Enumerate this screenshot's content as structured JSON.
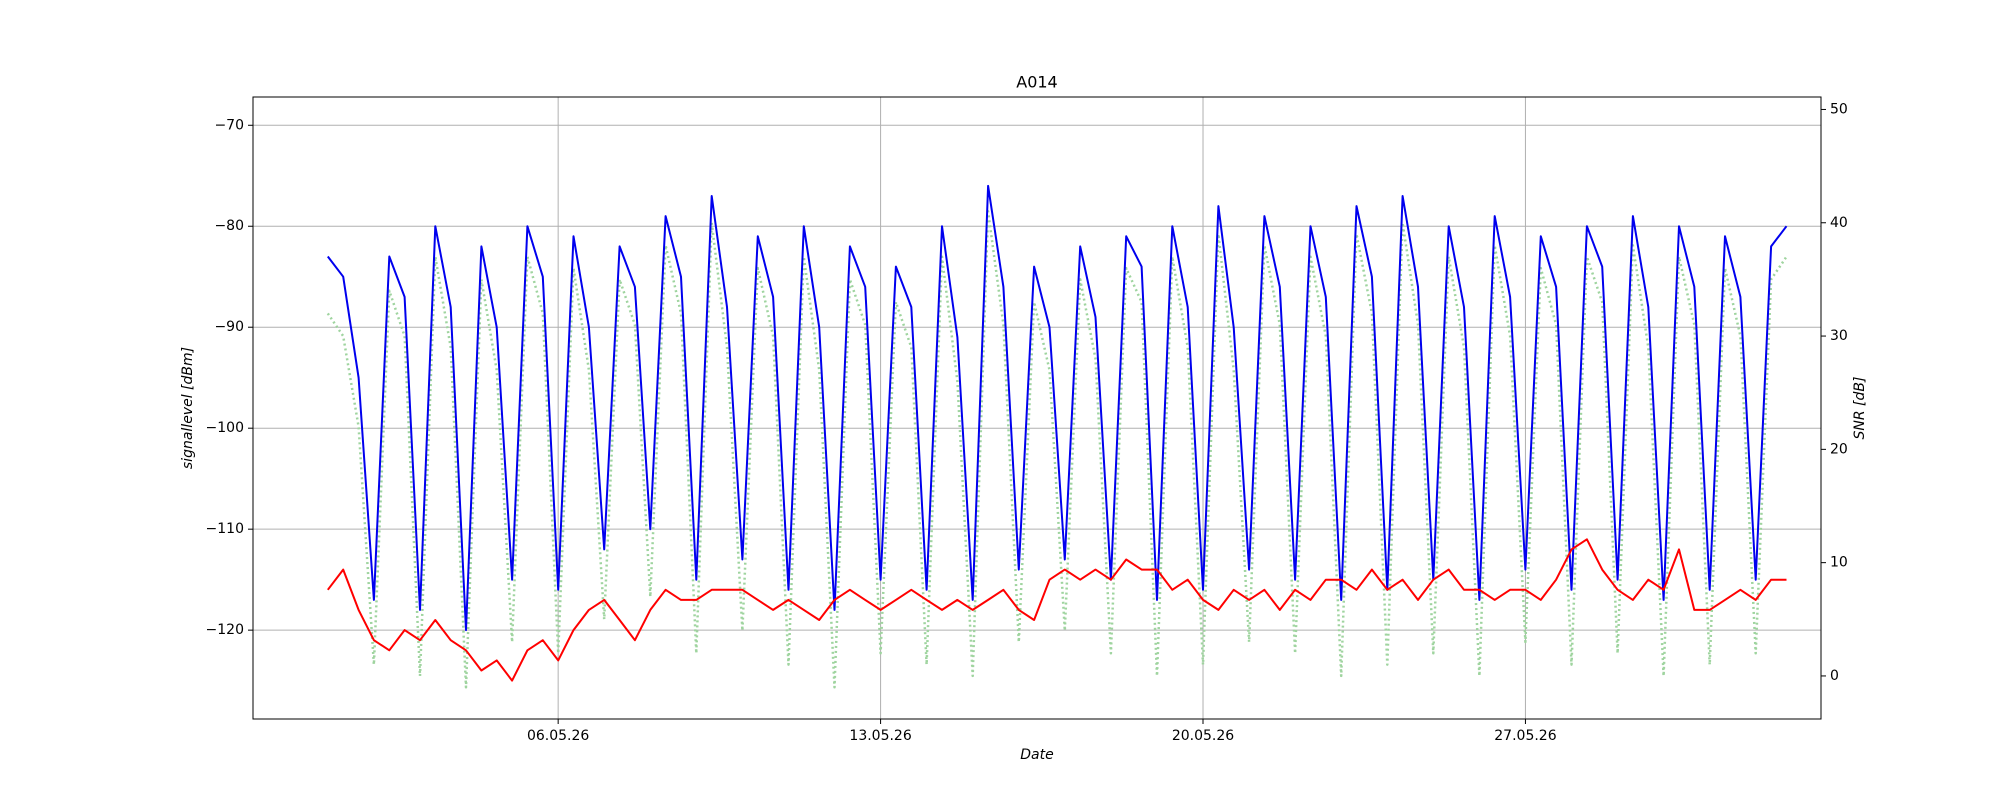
{
  "chart_data": {
    "type": "line",
    "title": "A014",
    "x_label": "Date",
    "y_label": "signallevel [dBm]",
    "y2_label": "SNR [dB]",
    "x": [
      "2026-05-01T00:00",
      "2026-05-01T08:00",
      "2026-05-01T16:00",
      "2026-05-02T00:00",
      "2026-05-02T08:00",
      "2026-05-02T16:00",
      "2026-05-03T00:00",
      "2026-05-03T08:00",
      "2026-05-03T16:00",
      "2026-05-04T00:00",
      "2026-05-04T08:00",
      "2026-05-04T16:00",
      "2026-05-05T00:00",
      "2026-05-05T08:00",
      "2026-05-05T16:00",
      "2026-05-06T00:00",
      "2026-05-06T08:00",
      "2026-05-06T16:00",
      "2026-05-07T00:00",
      "2026-05-07T08:00",
      "2026-05-07T16:00",
      "2026-05-08T00:00",
      "2026-05-08T08:00",
      "2026-05-08T16:00",
      "2026-05-09T00:00",
      "2026-05-09T08:00",
      "2026-05-09T16:00",
      "2026-05-10T00:00",
      "2026-05-10T08:00",
      "2026-05-10T16:00",
      "2026-05-11T00:00",
      "2026-05-11T08:00",
      "2026-05-11T16:00",
      "2026-05-12T00:00",
      "2026-05-12T08:00",
      "2026-05-12T16:00",
      "2026-05-13T00:00",
      "2026-05-13T08:00",
      "2026-05-13T16:00",
      "2026-05-14T00:00",
      "2026-05-14T08:00",
      "2026-05-14T16:00",
      "2026-05-15T00:00",
      "2026-05-15T08:00",
      "2026-05-15T16:00",
      "2026-05-16T00:00",
      "2026-05-16T08:00",
      "2026-05-16T16:00",
      "2026-05-17T00:00",
      "2026-05-17T08:00",
      "2026-05-17T16:00",
      "2026-05-18T00:00",
      "2026-05-18T08:00",
      "2026-05-18T16:00",
      "2026-05-19T00:00",
      "2026-05-19T08:00",
      "2026-05-19T16:00",
      "2026-05-20T00:00",
      "2026-05-20T08:00",
      "2026-05-20T16:00",
      "2026-05-21T00:00",
      "2026-05-21T08:00",
      "2026-05-21T16:00",
      "2026-05-22T00:00",
      "2026-05-22T08:00",
      "2026-05-22T16:00",
      "2026-05-23T00:00",
      "2026-05-23T08:00",
      "2026-05-23T16:00",
      "2026-05-24T00:00",
      "2026-05-24T08:00",
      "2026-05-24T16:00",
      "2026-05-25T00:00",
      "2026-05-25T08:00",
      "2026-05-25T16:00",
      "2026-05-26T00:00",
      "2026-05-26T08:00",
      "2026-05-26T16:00",
      "2026-05-27T00:00",
      "2026-05-27T08:00",
      "2026-05-27T16:00",
      "2026-05-28T00:00",
      "2026-05-28T08:00",
      "2026-05-28T16:00",
      "2026-05-29T00:00",
      "2026-05-29T08:00",
      "2026-05-29T16:00",
      "2026-05-30T00:00",
      "2026-05-30T08:00",
      "2026-05-30T16:00",
      "2026-05-31T00:00",
      "2026-05-31T08:00",
      "2026-05-31T16:00",
      "2026-06-01T00:00",
      "2026-06-01T08:00",
      "2026-06-01T16:00"
    ],
    "series": [
      {
        "color": "#9fd49f",
        "dash": "dotted",
        "axis": "y2",
        "values": [
          32,
          30,
          22,
          1,
          34,
          30,
          0,
          37,
          29,
          -1,
          35,
          27,
          3,
          37,
          32,
          2,
          36,
          27,
          5,
          35,
          31,
          7,
          38,
          32,
          2,
          40,
          29,
          4,
          36,
          30,
          1,
          37,
          27,
          -1,
          35,
          31,
          2,
          33,
          29,
          1,
          37,
          26,
          0,
          41,
          31,
          3,
          33,
          27,
          4,
          35,
          28,
          2,
          36,
          33,
          0,
          37,
          29,
          1,
          39,
          27,
          3,
          38,
          31,
          2,
          37,
          30,
          0,
          39,
          32,
          1,
          40,
          31,
          2,
          37,
          29,
          0,
          38,
          30,
          3,
          36,
          31,
          1,
          37,
          33,
          2,
          38,
          29,
          0,
          37,
          31,
          1,
          36,
          30,
          2,
          35,
          37
        ]
      },
      {
        "color": "#0000ee",
        "values": [
          -83,
          -85,
          -95,
          -117,
          -83,
          -87,
          -118,
          -80,
          -88,
          -120,
          -82,
          -90,
          -115,
          -80,
          -85,
          -116,
          -81,
          -90,
          -112,
          -82,
          -86,
          -110,
          -79,
          -85,
          -115,
          -77,
          -88,
          -113,
          -81,
          -87,
          -116,
          -80,
          -90,
          -118,
          -82,
          -86,
          -115,
          -84,
          -88,
          -116,
          -80,
          -91,
          -117,
          -76,
          -86,
          -114,
          -84,
          -90,
          -113,
          -82,
          -89,
          -115,
          -81,
          -84,
          -117,
          -80,
          -88,
          -116,
          -78,
          -90,
          -114,
          -79,
          -86,
          -115,
          -80,
          -87,
          -117,
          -78,
          -85,
          -116,
          -77,
          -86,
          -115,
          -80,
          -88,
          -117,
          -79,
          -87,
          -114,
          -81,
          -86,
          -116,
          -80,
          -84,
          -115,
          -79,
          -88,
          -117,
          -80,
          -86,
          -116,
          -81,
          -87,
          -115,
          -82,
          -80
        ]
      },
      {
        "color": "#ff0000",
        "values": [
          -116,
          -114,
          -118,
          -121,
          -122,
          -120,
          -121,
          -119,
          -121,
          -122,
          -124,
          -123,
          -125,
          -122,
          -121,
          -123,
          -120,
          -118,
          -117,
          -119,
          -121,
          -118,
          -116,
          -117,
          -117,
          -116,
          -116,
          -116,
          -117,
          -118,
          -117,
          -118,
          -119,
          -117,
          -116,
          -117,
          -118,
          -117,
          -116,
          -117,
          -118,
          -117,
          -118,
          -117,
          -116,
          -118,
          -119,
          -115,
          -114,
          -115,
          -114,
          -115,
          -113,
          -114,
          -114,
          -116,
          -115,
          -117,
          -118,
          -116,
          -117,
          -116,
          -118,
          -116,
          -117,
          -115,
          -115,
          -116,
          -114,
          -116,
          -115,
          -117,
          -115,
          -114,
          -116,
          -116,
          -117,
          -116,
          -116,
          -117,
          -115,
          -112,
          -111,
          -114,
          -116,
          -117,
          -115,
          -116,
          -112,
          -118,
          -118,
          -117,
          -116,
          -117,
          -115,
          -115
        ]
      }
    ],
    "xlim": [
      "2026-04-29T09:00",
      "2026-06-02T10:00"
    ],
    "xticks": [
      {
        "value": "2026-05-06T00:00",
        "label": "06.05.26"
      },
      {
        "value": "2026-05-13T00:00",
        "label": "13.05.26"
      },
      {
        "value": "2026-05-20T00:00",
        "label": "20.05.26"
      },
      {
        "value": "2026-05-27T00:00",
        "label": "27.05.26"
      }
    ],
    "ylim": [
      -128.8,
      -67.2
    ],
    "yticks": [
      {
        "value": -120,
        "label": "−120"
      },
      {
        "value": -110,
        "label": "−110"
      },
      {
        "value": -100,
        "label": "−100"
      },
      {
        "value": -90,
        "label": "−90"
      },
      {
        "value": -80,
        "label": "−80"
      },
      {
        "value": -70,
        "label": "−70"
      }
    ],
    "y2lim": [
      -3.8,
      51.1
    ],
    "y2ticks": [
      0,
      10,
      20,
      30,
      40,
      50
    ],
    "grid": true
  }
}
